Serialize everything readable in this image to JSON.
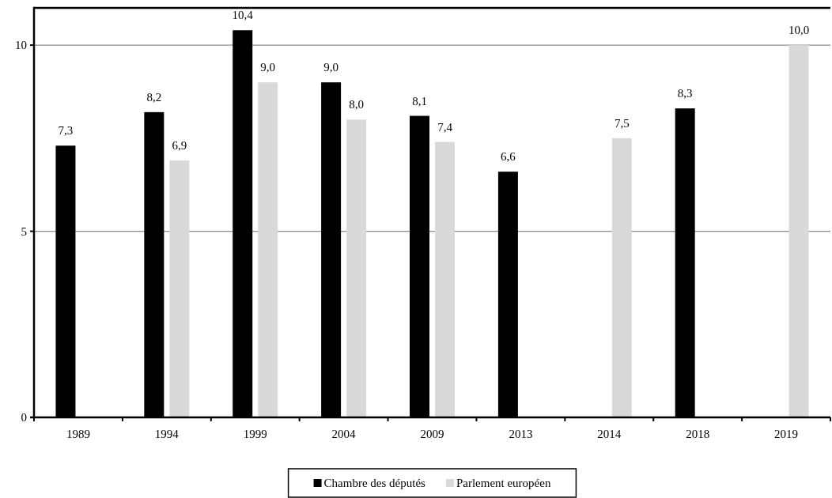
{
  "chart_data": {
    "type": "bar",
    "categories": [
      "1989",
      "1994",
      "1999",
      "2004",
      "2009",
      "2013",
      "2014",
      "2018",
      "2019"
    ],
    "series": [
      {
        "name": "Chambre des députés",
        "color": "#000000",
        "values": [
          7.3,
          8.2,
          10.4,
          9.0,
          8.1,
          6.6,
          null,
          8.3,
          null
        ],
        "value_labels": [
          "7,3",
          "8,2",
          "10,4",
          "9,0",
          "8,1",
          "6,6",
          null,
          "8,3",
          null
        ]
      },
      {
        "name": "Parlement européen",
        "color": "#d9d9d9",
        "values": [
          null,
          6.9,
          9.0,
          8.0,
          7.4,
          null,
          7.5,
          null,
          10.0
        ],
        "value_labels": [
          null,
          "6,9",
          "9,0",
          "8,0",
          "7,4",
          null,
          "7,5",
          null,
          "10,0"
        ]
      }
    ],
    "ylim": [
      0,
      11
    ],
    "yticks": [
      0,
      5,
      10
    ],
    "grid": "y",
    "legend": "bottom"
  }
}
